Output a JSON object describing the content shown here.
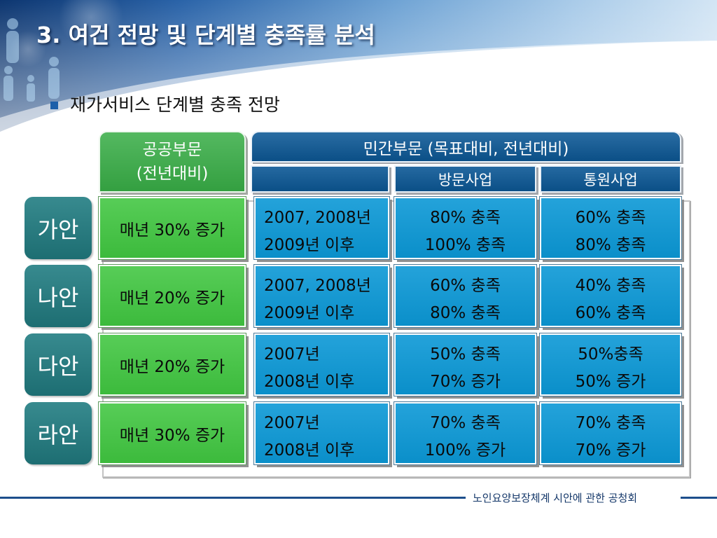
{
  "slide": {
    "title": "3. 여건 전망 및 단계별 충족률 분석",
    "bullet_text": "재가서비스 단계별 충족 전망",
    "bullet_icon": "square-bullet-icon"
  },
  "table": {
    "public_header": {
      "line1": "공공부문",
      "line2": "(전년대비)"
    },
    "private_header": "민간부문 (목표대비, 전년대비)",
    "sub_headers": {
      "visit": "방문사업",
      "daycare": "통원사업"
    },
    "rows": [
      {
        "label": "가안",
        "public": "매년 30% 증가",
        "period": [
          "2007, 2008년",
          "2009년 이후"
        ],
        "visit": [
          "80% 충족",
          "100% 충족"
        ],
        "daycare": [
          "60% 충족",
          "80% 충족"
        ]
      },
      {
        "label": "나안",
        "public": "매년 20% 증가",
        "period": [
          "2007, 2008년",
          "2009년 이후"
        ],
        "visit": [
          "60% 충족",
          "80% 충족"
        ],
        "daycare": [
          "40% 충족",
          "60% 충족"
        ]
      },
      {
        "label": "다안",
        "public": "매년 20% 증가",
        "period": [
          "2007년",
          "2008년 이후"
        ],
        "visit": [
          "50% 충족",
          "70% 증가"
        ],
        "daycare": [
          "50%충족",
          "50% 증가"
        ]
      },
      {
        "label": "라안",
        "public": "매년 30% 증가",
        "period": [
          "2007년",
          "2008년 이후"
        ],
        "visit": [
          "70% 충족",
          "100% 증가"
        ],
        "daycare": [
          "70% 충족",
          "70% 증가"
        ]
      }
    ]
  },
  "footer": {
    "text": "노인요양보장체계 시안에 관한 공청회"
  },
  "colors": {
    "public_header_green": "#38ad46",
    "public_cell_green": "#40c640",
    "private_header_navy": "#0c5896",
    "cell_blue": "#0b98d6",
    "row_label_teal": "#217d82",
    "footer_line": "#1d4f8c",
    "footer_text": "#15386a",
    "title_text": "#ffffff"
  }
}
